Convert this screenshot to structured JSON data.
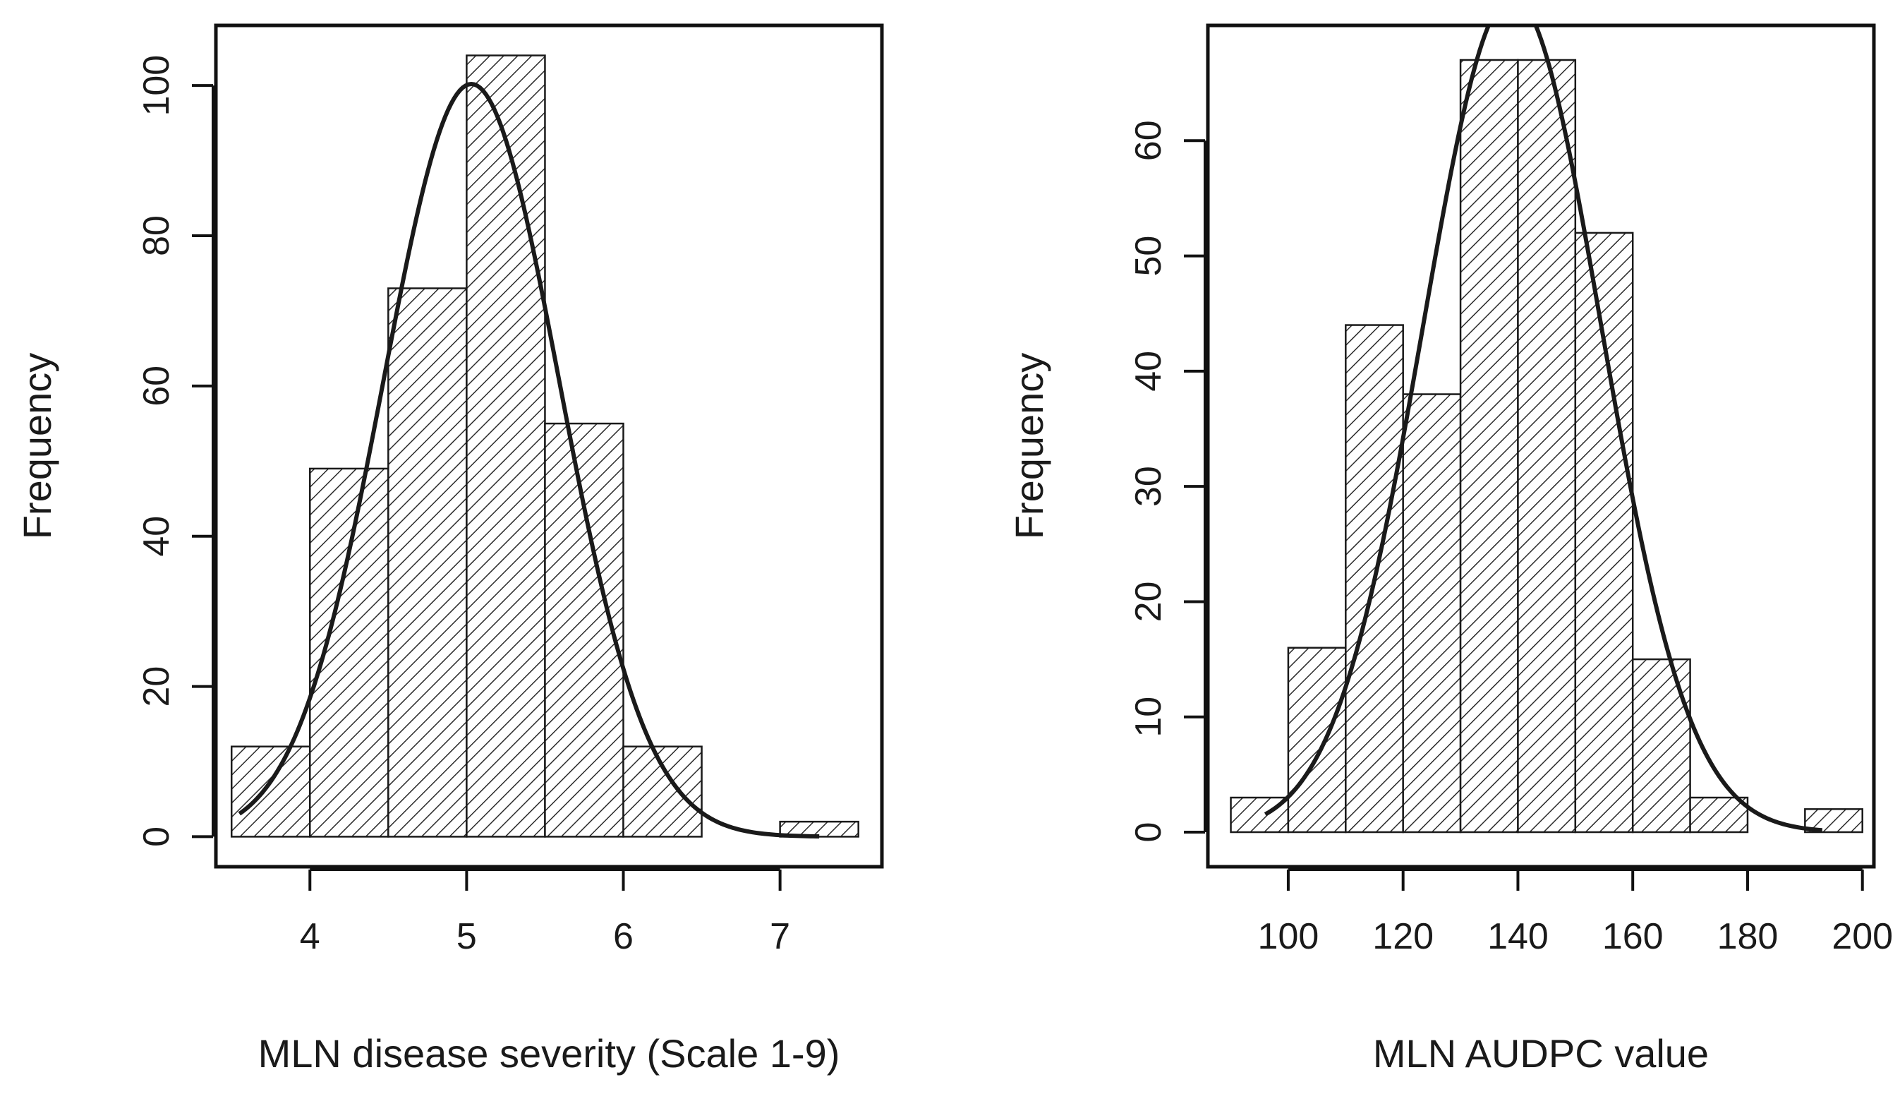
{
  "chart_data": [
    {
      "type": "bar",
      "subtype": "histogram",
      "title": "",
      "xlabel": "MLN disease severity (Scale 1-9)",
      "ylabel": "Frequency",
      "bins": [
        {
          "start": 3.5,
          "end": 4.0,
          "count": 12
        },
        {
          "start": 4.0,
          "end": 4.5,
          "count": 49
        },
        {
          "start": 4.5,
          "end": 5.0,
          "count": 73
        },
        {
          "start": 5.0,
          "end": 5.5,
          "count": 104
        },
        {
          "start": 5.5,
          "end": 6.0,
          "count": 55
        },
        {
          "start": 6.0,
          "end": 6.5,
          "count": 12
        },
        {
          "start": 6.5,
          "end": 7.0,
          "count": 0
        },
        {
          "start": 7.0,
          "end": 7.5,
          "count": 2
        }
      ],
      "curve": {
        "type": "normal",
        "mean": 5.03,
        "sd": 0.56,
        "peak": 100.2,
        "x_range": [
          3.55,
          7.25
        ]
      },
      "xlim": [
        3.4,
        7.65
      ],
      "ylim": [
        -4,
        108
      ],
      "x_ticks": [
        4,
        5,
        6,
        7
      ],
      "x_tick_labels": [
        "4",
        "5",
        "6",
        "7"
      ],
      "y_ticks": [
        0,
        20,
        40,
        60,
        80,
        100
      ],
      "y_tick_labels": [
        "0",
        "20",
        "40",
        "60",
        "80",
        "100"
      ],
      "fill_pattern": "diagonal-hatch",
      "grid": false
    },
    {
      "type": "bar",
      "subtype": "histogram",
      "title": "",
      "xlabel": "MLN AUDPC value",
      "ylabel": "Frequency",
      "bins": [
        {
          "start": 90,
          "end": 100,
          "count": 3
        },
        {
          "start": 100,
          "end": 110,
          "count": 16
        },
        {
          "start": 110,
          "end": 120,
          "count": 44
        },
        {
          "start": 120,
          "end": 130,
          "count": 38
        },
        {
          "start": 130,
          "end": 140,
          "count": 67
        },
        {
          "start": 140,
          "end": 150,
          "count": 67
        },
        {
          "start": 150,
          "end": 160,
          "count": 52
        },
        {
          "start": 160,
          "end": 170,
          "count": 15
        },
        {
          "start": 170,
          "end": 180,
          "count": 3
        },
        {
          "start": 180,
          "end": 190,
          "count": 0
        },
        {
          "start": 190,
          "end": 200,
          "count": 2
        }
      ],
      "curve": {
        "type": "normal",
        "mean": 139,
        "sd": 15.5,
        "peak": 72.5,
        "x_range": [
          96,
          193
        ]
      },
      "xlim": [
        86,
        202
      ],
      "ylim": [
        -3,
        70
      ],
      "x_ticks": [
        100,
        120,
        140,
        160,
        180,
        200
      ],
      "x_tick_labels": [
        "100",
        "120",
        "140",
        "160",
        "180",
        "200"
      ],
      "y_ticks": [
        0,
        10,
        20,
        30,
        40,
        50,
        60
      ],
      "y_tick_labels": [
        "0",
        "10",
        "20",
        "30",
        "40",
        "50",
        "60"
      ],
      "fill_pattern": "diagonal-hatch",
      "grid": false
    }
  ]
}
